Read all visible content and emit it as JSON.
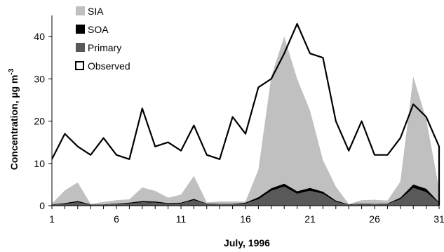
{
  "chart_data": {
    "type": "area",
    "xlabel": "July, 1996",
    "ylabel": "Concentration, µg m",
    "ylabel_superscript": "-3",
    "xlim": [
      1,
      31
    ],
    "ylim": [
      0,
      45
    ],
    "xticks": [
      1,
      6,
      11,
      16,
      21,
      26,
      31
    ],
    "yticks": [
      0,
      10,
      20,
      30,
      40
    ],
    "grid": false,
    "legend_position": "top-left",
    "x": [
      1,
      2,
      3,
      4,
      5,
      6,
      7,
      8,
      9,
      10,
      11,
      12,
      13,
      14,
      15,
      16,
      17,
      18,
      19,
      20,
      21,
      22,
      23,
      24,
      25,
      26,
      27,
      28,
      29,
      30,
      31
    ],
    "series": [
      {
        "name": "Primary",
        "kind": "stacked-area",
        "color": "#595959",
        "values": [
          0.2,
          0.4,
          0.8,
          0.2,
          0.2,
          0.4,
          0.5,
          0.8,
          0.7,
          0.4,
          0.5,
          1.3,
          0.4,
          0.3,
          0.3,
          0.5,
          1.5,
          3.5,
          4.5,
          2.8,
          3.5,
          2.8,
          0.9,
          0.2,
          0.4,
          0.3,
          0.4,
          1.5,
          4.2,
          3.2,
          0.6
        ]
      },
      {
        "name": "SOA",
        "kind": "stacked-area",
        "color": "#000000",
        "values": [
          0.1,
          0.2,
          0.3,
          0.1,
          0.1,
          0.1,
          0.2,
          0.3,
          0.3,
          0.2,
          0.2,
          0.3,
          0.1,
          0.1,
          0.1,
          0.2,
          0.5,
          0.6,
          0.7,
          0.6,
          0.7,
          0.5,
          0.3,
          0.1,
          0.1,
          0.1,
          0.1,
          0.4,
          0.8,
          0.8,
          0.2
        ]
      },
      {
        "name": "SIA",
        "kind": "stacked-area",
        "color": "#c0c0c0",
        "values": [
          0.2,
          3.0,
          4.4,
          0.1,
          0.6,
          0.8,
          0.8,
          3.2,
          2.5,
          1.3,
          1.9,
          5.4,
          0.3,
          0.6,
          0.6,
          0.3,
          6.5,
          26.5,
          34.8,
          26.6,
          18.3,
          7.5,
          3.3,
          0.1,
          0.8,
          1.0,
          0.7,
          3.8,
          25.5,
          16.5,
          3.2
        ]
      },
      {
        "name": "Observed",
        "kind": "line",
        "color": "#000000",
        "values": [
          11,
          17,
          14,
          12,
          16,
          12,
          11,
          23,
          14,
          15,
          13,
          19,
          12,
          11,
          21,
          17,
          28,
          30,
          36,
          43,
          36,
          35,
          20,
          13,
          20,
          12,
          12,
          16,
          24,
          21,
          14
        ]
      }
    ],
    "legend_order": [
      "SIA",
      "SOA",
      "Primary",
      "Observed"
    ]
  }
}
